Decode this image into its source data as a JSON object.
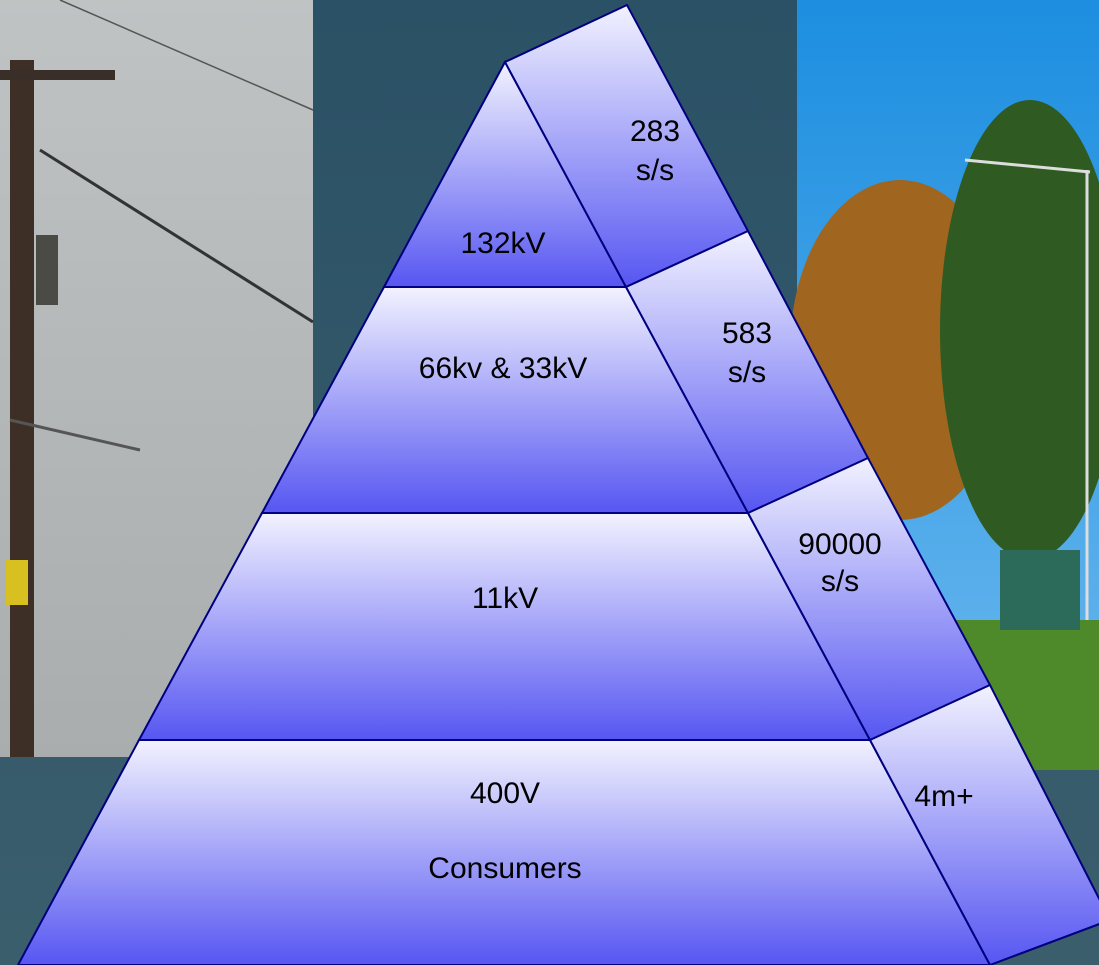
{
  "levels": [
    [
      "132kV"
    ],
    [
      "66kv & 33kV"
    ],
    [
      "11kV"
    ],
    [
      "400V",
      "Consumers"
    ]
  ],
  "counts": [
    [
      "283",
      "s/s"
    ],
    [
      "583",
      "s/s"
    ],
    [
      "90000",
      "s/s"
    ],
    [
      "4m+"
    ]
  ]
}
